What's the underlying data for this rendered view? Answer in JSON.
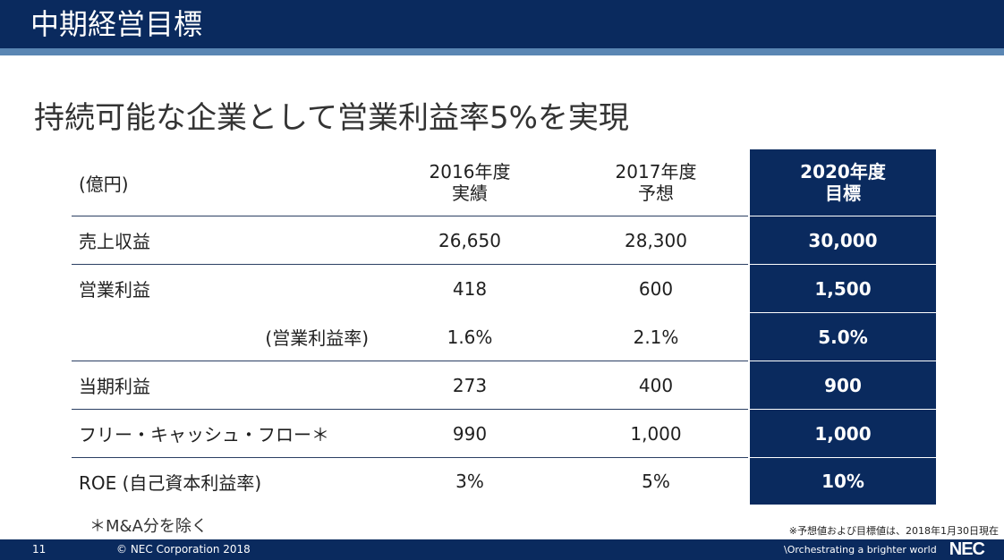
{
  "slide": {
    "header_title": "中期経営目標",
    "subtitle": "持続可能な企業として営業利益率5%を実現"
  },
  "table": {
    "unit": "(億円)",
    "columns": [
      {
        "line1": "2016年度",
        "line2": "実績"
      },
      {
        "line1": "2017年度",
        "line2": "予想"
      },
      {
        "line1": "2020年度",
        "line2": "目標"
      }
    ],
    "rows": [
      {
        "label": "売上収益",
        "values": [
          "26,650",
          "28,300",
          "30,000"
        ]
      },
      {
        "label": "営業利益",
        "values": [
          "418",
          "600",
          "1,500"
        ]
      },
      {
        "label": "(営業利益率)",
        "values": [
          "1.6%",
          "2.1%",
          "5.0%"
        ]
      },
      {
        "label": "当期利益",
        "values": [
          "273",
          "400",
          "900"
        ]
      },
      {
        "label": "フリー・キャッシュ・フロー＊",
        "values": [
          "990",
          "1,000",
          "1,000"
        ]
      },
      {
        "label": "ROE (自己資本利益率)",
        "values": [
          "3%",
          "5%",
          "10%"
        ]
      }
    ]
  },
  "notes": {
    "footnote": "＊M&A分を除く",
    "as_of": "※予想値および目標値は、2018年1月30日現在"
  },
  "footer": {
    "page_number": "11",
    "copyright": "© NEC Corporation 2018",
    "tagline": "\\Orchestrating a brighter world",
    "logo": "NEC"
  }
}
